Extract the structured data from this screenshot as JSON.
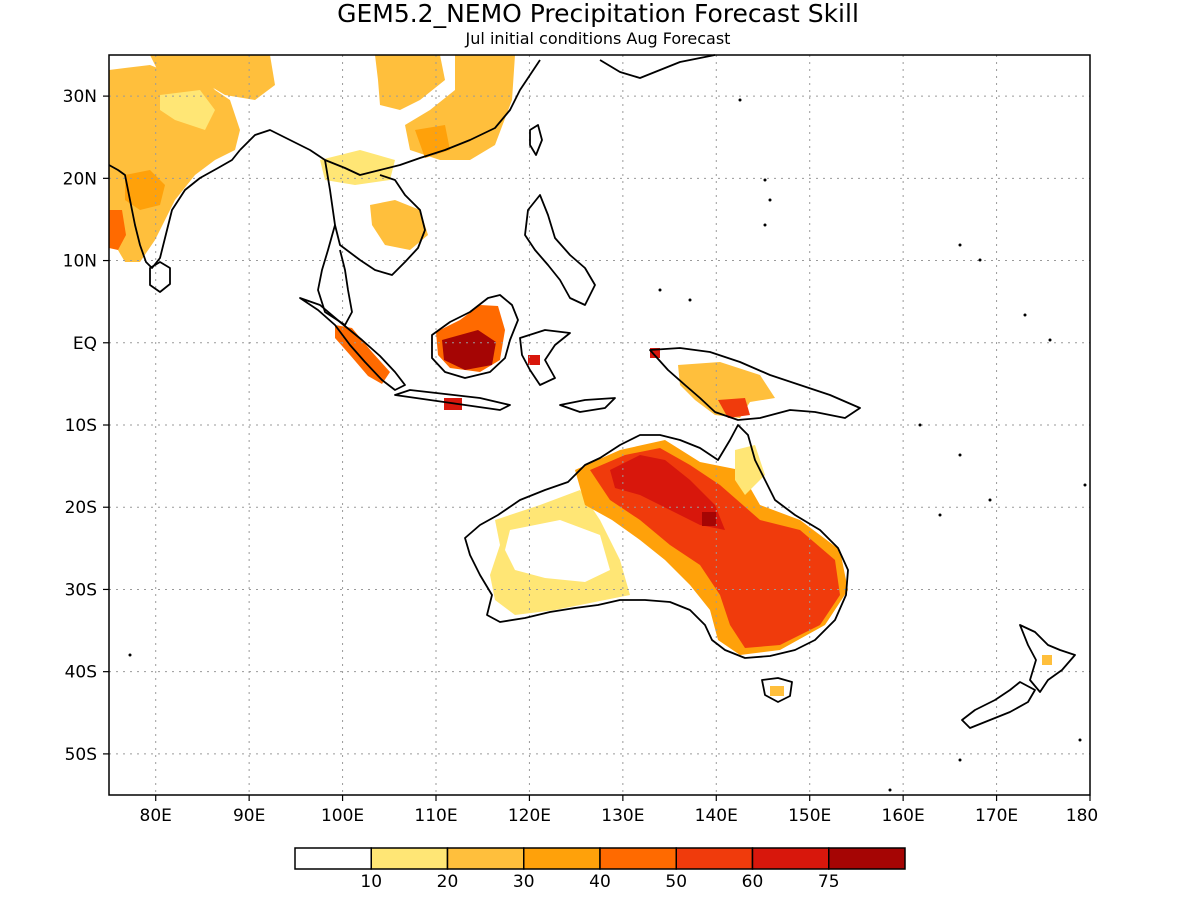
{
  "title": "GEM5.2_NEMO Precipitation Forecast Skill",
  "subtitle": "Jul initial conditions  Aug Forecast",
  "map": {
    "lon_range": [
      75,
      180
    ],
    "lat_range": [
      -55,
      35
    ],
    "lon_ticks": [
      80,
      90,
      100,
      110,
      120,
      130,
      140,
      150,
      160,
      170,
      180
    ],
    "lon_labels": [
      "80E",
      "90E",
      "100E",
      "110E",
      "120E",
      "130E",
      "140E",
      "150E",
      "160E",
      "170E",
      "180"
    ],
    "lat_ticks": [
      30,
      20,
      10,
      0,
      -10,
      -20,
      -30,
      -40,
      -50
    ],
    "lat_labels": [
      "30N",
      "20N",
      "10N",
      "EQ",
      "10S",
      "20S",
      "30S",
      "40S",
      "50S"
    ],
    "grid": "dotted"
  },
  "colorbar": {
    "colors": [
      "#ffffff",
      "#ffe675",
      "#ffbf3c",
      "#ffa10a",
      "#ff6a00",
      "#f03b0c",
      "#d8170c",
      "#a50504"
    ],
    "labels": [
      "10",
      "20",
      "30",
      "40",
      "50",
      "60",
      "75"
    ]
  }
}
